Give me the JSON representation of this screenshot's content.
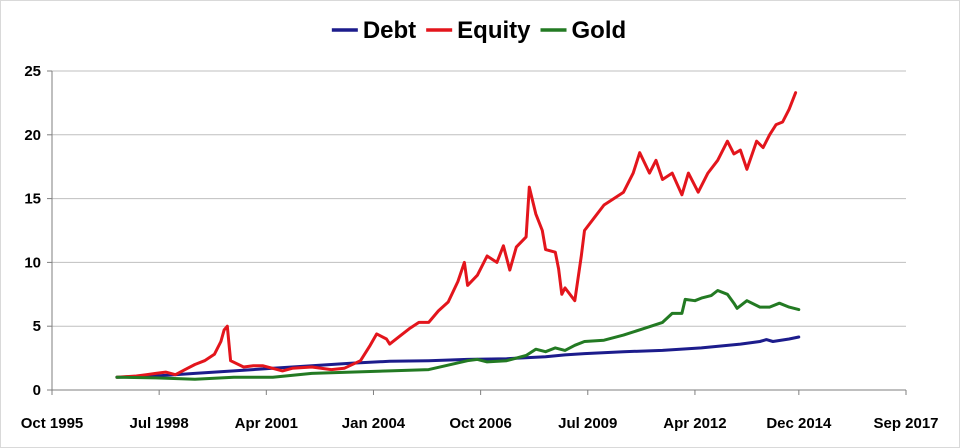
{
  "chart_data": {
    "type": "line",
    "title": "",
    "xlabel": "",
    "ylabel": "",
    "xlim": [
      "1995-10",
      "2017-09"
    ],
    "ylim": [
      0,
      25
    ],
    "y_ticks": [
      0,
      5,
      10,
      15,
      20,
      25
    ],
    "x_ticks": [
      {
        "date": "1995-10",
        "label": "Oct 1995"
      },
      {
        "date": "1998-07",
        "label": "Jul 1998"
      },
      {
        "date": "2001-04",
        "label": "Apr 2001"
      },
      {
        "date": "2004-01",
        "label": "Jan 2004"
      },
      {
        "date": "2006-10",
        "label": "Oct 2006"
      },
      {
        "date": "2009-07",
        "label": "Jul 2009"
      },
      {
        "date": "2012-04",
        "label": "Apr 2012"
      },
      {
        "date": "2014-12",
        "label": "Dec 2014"
      },
      {
        "date": "2017-09",
        "label": "Sep 2017"
      }
    ],
    "grid": "horizontal",
    "legend_position": "top",
    "series": [
      {
        "name": "Debt",
        "color": "#1c1c8c",
        "points": [
          [
            "1997-06",
            1.0
          ],
          [
            "1998-06",
            1.1
          ],
          [
            "1999-06",
            1.3
          ],
          [
            "2000-06",
            1.5
          ],
          [
            "2001-06",
            1.7
          ],
          [
            "2002-06",
            1.9
          ],
          [
            "2003-06",
            2.1
          ],
          [
            "2004-06",
            2.25
          ],
          [
            "2005-06",
            2.3
          ],
          [
            "2006-06",
            2.4
          ],
          [
            "2007-06",
            2.45
          ],
          [
            "2008-06",
            2.6
          ],
          [
            "2008-12",
            2.75
          ],
          [
            "2009-06",
            2.85
          ],
          [
            "2010-06",
            3.0
          ],
          [
            "2011-06",
            3.1
          ],
          [
            "2012-06",
            3.3
          ],
          [
            "2013-06",
            3.6
          ],
          [
            "2013-12",
            3.8
          ],
          [
            "2014-02",
            3.95
          ],
          [
            "2014-04",
            3.8
          ],
          [
            "2014-09",
            4.0
          ],
          [
            "2014-12",
            4.15
          ]
        ]
      },
      {
        "name": "Equity",
        "color": "#e3151c",
        "points": [
          [
            "1997-06",
            1.0
          ],
          [
            "1997-12",
            1.1
          ],
          [
            "1998-03",
            1.2
          ],
          [
            "1998-06",
            1.3
          ],
          [
            "1998-09",
            1.4
          ],
          [
            "1998-12",
            1.2
          ],
          [
            "1999-03",
            1.6
          ],
          [
            "1999-06",
            2.0
          ],
          [
            "1999-09",
            2.3
          ],
          [
            "1999-12",
            2.8
          ],
          [
            "2000-02",
            3.8
          ],
          [
            "2000-03",
            4.7
          ],
          [
            "2000-04",
            5.0
          ],
          [
            "2000-05",
            2.3
          ],
          [
            "2000-09",
            1.8
          ],
          [
            "2000-12",
            1.9
          ],
          [
            "2001-03",
            1.9
          ],
          [
            "2001-09",
            1.5
          ],
          [
            "2001-12",
            1.7
          ],
          [
            "2002-06",
            1.8
          ],
          [
            "2002-12",
            1.6
          ],
          [
            "2003-04",
            1.7
          ],
          [
            "2003-09",
            2.3
          ],
          [
            "2003-12",
            3.5
          ],
          [
            "2004-02",
            4.4
          ],
          [
            "2004-05",
            4.0
          ],
          [
            "2004-06",
            3.6
          ],
          [
            "2004-09",
            4.2
          ],
          [
            "2004-12",
            4.8
          ],
          [
            "2005-03",
            5.3
          ],
          [
            "2005-06",
            5.3
          ],
          [
            "2005-09",
            6.2
          ],
          [
            "2005-12",
            6.9
          ],
          [
            "2006-03",
            8.5
          ],
          [
            "2006-05",
            10.0
          ],
          [
            "2006-06",
            8.2
          ],
          [
            "2006-09",
            9.0
          ],
          [
            "2006-12",
            10.5
          ],
          [
            "2007-03",
            10.0
          ],
          [
            "2007-05",
            11.3
          ],
          [
            "2007-07",
            9.4
          ],
          [
            "2007-09",
            11.2
          ],
          [
            "2007-12",
            12.0
          ],
          [
            "2008-01",
            15.9
          ],
          [
            "2008-03",
            13.8
          ],
          [
            "2008-05",
            12.5
          ],
          [
            "2008-06",
            11.0
          ],
          [
            "2008-09",
            10.8
          ],
          [
            "2008-10",
            9.5
          ],
          [
            "2008-11",
            7.5
          ],
          [
            "2008-12",
            8.0
          ],
          [
            "2009-03",
            7.0
          ],
          [
            "2009-05",
            10.5
          ],
          [
            "2009-06",
            12.5
          ],
          [
            "2009-09",
            13.5
          ],
          [
            "2009-12",
            14.5
          ],
          [
            "2010-03",
            15.0
          ],
          [
            "2010-06",
            15.5
          ],
          [
            "2010-09",
            17.0
          ],
          [
            "2010-11",
            18.6
          ],
          [
            "2011-02",
            17.0
          ],
          [
            "2011-04",
            18.0
          ],
          [
            "2011-06",
            16.5
          ],
          [
            "2011-09",
            17.0
          ],
          [
            "2011-12",
            15.3
          ],
          [
            "2012-02",
            17.0
          ],
          [
            "2012-05",
            15.5
          ],
          [
            "2012-08",
            17.0
          ],
          [
            "2012-11",
            18.0
          ],
          [
            "2013-02",
            19.5
          ],
          [
            "2013-04",
            18.5
          ],
          [
            "2013-06",
            18.8
          ],
          [
            "2013-08",
            17.3
          ],
          [
            "2013-11",
            19.5
          ],
          [
            "2014-01",
            19.0
          ],
          [
            "2014-03",
            20.0
          ],
          [
            "2014-05",
            20.8
          ],
          [
            "2014-07",
            21.0
          ],
          [
            "2014-09",
            22.0
          ],
          [
            "2014-11",
            23.3
          ]
        ]
      },
      {
        "name": "Gold",
        "color": "#237a23",
        "points": [
          [
            "1997-06",
            1.0
          ],
          [
            "1998-06",
            0.95
          ],
          [
            "1999-06",
            0.85
          ],
          [
            "2000-06",
            1.0
          ],
          [
            "2001-06",
            1.0
          ],
          [
            "2002-06",
            1.3
          ],
          [
            "2003-06",
            1.4
          ],
          [
            "2004-06",
            1.5
          ],
          [
            "2005-06",
            1.6
          ],
          [
            "2006-06",
            2.3
          ],
          [
            "2006-09",
            2.4
          ],
          [
            "2006-12",
            2.2
          ],
          [
            "2007-06",
            2.3
          ],
          [
            "2007-12",
            2.7
          ],
          [
            "2008-03",
            3.2
          ],
          [
            "2008-06",
            3.0
          ],
          [
            "2008-09",
            3.3
          ],
          [
            "2008-12",
            3.1
          ],
          [
            "2009-03",
            3.5
          ],
          [
            "2009-06",
            3.8
          ],
          [
            "2009-12",
            3.9
          ],
          [
            "2010-06",
            4.3
          ],
          [
            "2010-12",
            4.8
          ],
          [
            "2011-06",
            5.3
          ],
          [
            "2011-09",
            6.0
          ],
          [
            "2011-12",
            6.0
          ],
          [
            "2012-01",
            7.1
          ],
          [
            "2012-04",
            7.0
          ],
          [
            "2012-06",
            7.2
          ],
          [
            "2012-09",
            7.4
          ],
          [
            "2012-11",
            7.8
          ],
          [
            "2013-02",
            7.5
          ],
          [
            "2013-04",
            6.8
          ],
          [
            "2013-05",
            6.4
          ],
          [
            "2013-08",
            7.0
          ],
          [
            "2013-12",
            6.5
          ],
          [
            "2014-03",
            6.5
          ],
          [
            "2014-06",
            6.8
          ],
          [
            "2014-09",
            6.5
          ],
          [
            "2014-12",
            6.3
          ]
        ]
      }
    ]
  }
}
